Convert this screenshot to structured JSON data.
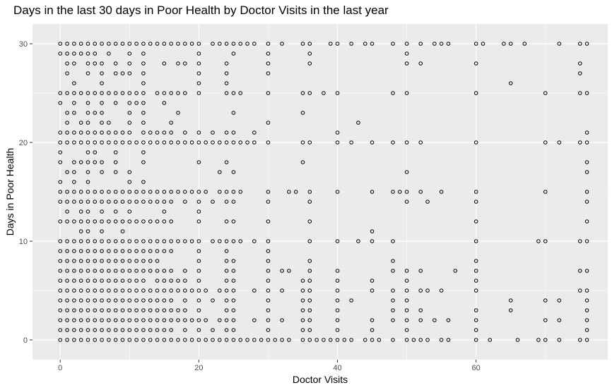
{
  "chart_data": {
    "type": "scatter",
    "title": "Days in the last 30 days in Poor Health by Doctor Visits in the last year",
    "xlabel": "Doctor Visits",
    "ylabel": "Days in Poor Health",
    "xlim": [
      -4,
      79
    ],
    "ylim": [
      -2,
      32
    ],
    "x_ticks": [
      0,
      20,
      40,
      60
    ],
    "y_ticks": [
      0,
      10,
      20,
      30
    ],
    "grid": true,
    "background": "#ebebeb",
    "gridline_color": "#ffffff",
    "marker": "open-circle",
    "x_values_dense": [
      0,
      1,
      2,
      3,
      4,
      5,
      6,
      7,
      8,
      9,
      10,
      11,
      12,
      13,
      14,
      15,
      16,
      17,
      18,
      19,
      20,
      21,
      22,
      23,
      24,
      25,
      26,
      28,
      30,
      32,
      35,
      36,
      38,
      40,
      42,
      45,
      48,
      50,
      52,
      55,
      60,
      65,
      70,
      75
    ],
    "rows": [
      {
        "y": 30,
        "x": [
          0,
          1,
          2,
          3,
          4,
          5,
          6,
          7,
          8,
          9,
          10,
          11,
          12,
          13,
          14,
          15,
          16,
          17,
          18,
          19,
          20,
          22,
          23,
          24,
          25,
          26,
          27,
          28,
          30,
          32,
          35,
          36,
          39,
          40,
          42,
          44,
          45,
          48,
          50,
          52,
          54,
          55,
          56,
          60,
          61,
          64,
          65,
          67,
          72,
          75,
          76
        ]
      },
      {
        "y": 29,
        "x": [
          0,
          1,
          2,
          3,
          4,
          5,
          7,
          10,
          12,
          20,
          25,
          30,
          36,
          50
        ]
      },
      {
        "y": 28,
        "x": [
          1,
          2,
          4,
          5,
          6,
          8,
          10,
          12,
          15,
          17,
          18,
          20,
          24,
          30,
          36,
          50,
          52,
          60,
          75
        ]
      },
      {
        "y": 27,
        "x": [
          1,
          4,
          6,
          8,
          9,
          10,
          12,
          20,
          24,
          30,
          75
        ]
      },
      {
        "y": 26,
        "x": [
          2,
          6,
          12,
          20,
          24,
          65
        ]
      },
      {
        "y": 25,
        "x": [
          0,
          1,
          2,
          3,
          4,
          5,
          6,
          7,
          8,
          9,
          10,
          11,
          12,
          14,
          15,
          16,
          17,
          18,
          20,
          24,
          25,
          26,
          30,
          35,
          36,
          38,
          40,
          48,
          50,
          60,
          70,
          75,
          76
        ]
      },
      {
        "y": 24,
        "x": [
          0,
          2,
          4,
          6,
          8,
          10,
          11,
          12,
          15
        ]
      },
      {
        "y": 23,
        "x": [
          1,
          2,
          4,
          5,
          6,
          10,
          12,
          17,
          25,
          35
        ]
      },
      {
        "y": 22,
        "x": [
          1,
          3,
          4,
          6,
          7,
          10,
          12,
          16,
          30,
          43
        ]
      },
      {
        "y": 21,
        "x": [
          0,
          1,
          2,
          3,
          4,
          5,
          6,
          7,
          8,
          9,
          10,
          12,
          13,
          14,
          15,
          16,
          18,
          20,
          22,
          24,
          25,
          28,
          40,
          76
        ]
      },
      {
        "y": 20,
        "x": [
          0,
          1,
          2,
          3,
          4,
          5,
          6,
          7,
          8,
          9,
          10,
          11,
          12,
          13,
          14,
          15,
          16,
          17,
          18,
          19,
          20,
          21,
          22,
          23,
          24,
          25,
          26,
          27,
          28,
          30,
          35,
          36,
          40,
          42,
          45,
          48,
          50,
          52,
          60,
          70,
          72,
          75,
          76
        ]
      },
      {
        "y": 19,
        "x": [
          0,
          4,
          5,
          8,
          12
        ]
      },
      {
        "y": 18,
        "x": [
          0,
          2,
          3,
          4,
          5,
          6,
          8,
          12,
          20,
          24,
          35,
          76
        ]
      },
      {
        "y": 17,
        "x": [
          1,
          2,
          4,
          6,
          8,
          10,
          23,
          25,
          50,
          76
        ]
      },
      {
        "y": 16,
        "x": [
          0,
          2,
          4,
          10,
          12
        ]
      },
      {
        "y": 15,
        "x": [
          0,
          1,
          2,
          3,
          4,
          5,
          6,
          7,
          8,
          9,
          10,
          11,
          12,
          13,
          14,
          15,
          16,
          17,
          18,
          19,
          20,
          21,
          23,
          24,
          25,
          26,
          30,
          33,
          34,
          36,
          40,
          45,
          48,
          49,
          50,
          52,
          55,
          60,
          70,
          76
        ]
      },
      {
        "y": 14,
        "x": [
          0,
          1,
          2,
          3,
          4,
          5,
          6,
          7,
          8,
          9,
          10,
          11,
          12,
          13,
          14,
          15,
          16,
          18,
          20,
          22,
          24,
          25,
          30,
          36,
          50,
          53,
          60,
          76
        ]
      },
      {
        "y": 13,
        "x": [
          1,
          3,
          4,
          6,
          8,
          10,
          15,
          20
        ]
      },
      {
        "y": 12,
        "x": [
          0,
          1,
          2,
          3,
          4,
          5,
          6,
          7,
          8,
          9,
          10,
          11,
          12,
          13,
          14,
          15,
          16,
          20,
          24,
          25,
          30,
          36,
          60,
          76
        ]
      },
      {
        "y": 11,
        "x": [
          3,
          4,
          6,
          9,
          45
        ]
      },
      {
        "y": 10,
        "x": [
          0,
          1,
          2,
          3,
          4,
          5,
          6,
          7,
          8,
          9,
          10,
          11,
          12,
          13,
          14,
          15,
          16,
          17,
          18,
          19,
          20,
          22,
          23,
          24,
          25,
          26,
          28,
          30,
          36,
          40,
          43,
          45,
          48,
          60,
          69,
          70,
          75,
          76
        ]
      },
      {
        "y": 9,
        "x": [
          0,
          1,
          2,
          3,
          4,
          5,
          6,
          7,
          8,
          9,
          10,
          11,
          12,
          13,
          14,
          15,
          16,
          20,
          24,
          30
        ]
      },
      {
        "y": 8,
        "x": [
          0,
          1,
          2,
          3,
          4,
          5,
          6,
          7,
          8,
          9,
          10,
          11,
          12,
          13,
          14,
          20,
          24,
          25,
          30,
          36,
          48,
          60
        ]
      },
      {
        "y": 7,
        "x": [
          0,
          1,
          2,
          3,
          4,
          5,
          6,
          7,
          8,
          9,
          10,
          11,
          12,
          13,
          14,
          15,
          16,
          18,
          20,
          24,
          25,
          30,
          32,
          33,
          36,
          40,
          48,
          50,
          52,
          57,
          60,
          75,
          76
        ]
      },
      {
        "y": 6,
        "x": [
          0,
          1,
          2,
          3,
          4,
          5,
          6,
          7,
          8,
          9,
          10,
          11,
          12,
          14,
          15,
          16,
          17,
          18,
          20,
          24,
          25,
          30,
          35,
          36,
          40,
          45,
          50,
          60
        ]
      },
      {
        "y": 5,
        "x": [
          0,
          1,
          2,
          3,
          4,
          5,
          6,
          7,
          8,
          9,
          10,
          11,
          12,
          13,
          14,
          15,
          16,
          17,
          18,
          19,
          20,
          21,
          23,
          24,
          25,
          28,
          30,
          32,
          35,
          36,
          40,
          45,
          48,
          50,
          52,
          53,
          55,
          60,
          75,
          76
        ]
      },
      {
        "y": 4,
        "x": [
          0,
          1,
          2,
          3,
          4,
          5,
          6,
          7,
          8,
          9,
          10,
          11,
          12,
          13,
          14,
          15,
          16,
          18,
          20,
          22,
          24,
          25,
          30,
          35,
          36,
          40,
          42,
          48,
          50,
          65,
          70,
          72,
          76
        ]
      },
      {
        "y": 3,
        "x": [
          0,
          1,
          2,
          3,
          4,
          5,
          6,
          7,
          8,
          9,
          10,
          11,
          12,
          13,
          14,
          15,
          16,
          17,
          18,
          20,
          24,
          25,
          30,
          35,
          36,
          40,
          48,
          50,
          52,
          60,
          65,
          76
        ]
      },
      {
        "y": 2,
        "x": [
          0,
          1,
          2,
          3,
          4,
          5,
          6,
          7,
          8,
          9,
          10,
          11,
          12,
          13,
          14,
          15,
          16,
          17,
          18,
          19,
          20,
          21,
          23,
          24,
          25,
          28,
          30,
          32,
          35,
          36,
          40,
          45,
          48,
          50,
          52,
          54,
          56,
          60,
          70,
          72,
          76
        ]
      },
      {
        "y": 1,
        "x": [
          0,
          1,
          2,
          3,
          4,
          5,
          6,
          7,
          8,
          9,
          10,
          11,
          12,
          13,
          14,
          15,
          16,
          18,
          20,
          22,
          24,
          25,
          30,
          35,
          36,
          40,
          45,
          50,
          60,
          76
        ]
      },
      {
        "y": 0,
        "x": [
          0,
          1,
          2,
          3,
          4,
          5,
          6,
          7,
          8,
          9,
          10,
          11,
          12,
          13,
          14,
          15,
          16,
          17,
          18,
          19,
          20,
          21,
          22,
          23,
          24,
          25,
          26,
          27,
          28,
          29,
          30,
          31,
          32,
          33,
          35,
          36,
          37,
          38,
          39,
          40,
          41,
          42,
          44,
          45,
          46,
          48,
          50,
          51,
          52,
          53,
          55,
          56,
          60,
          62,
          66,
          69,
          70,
          72,
          75,
          76
        ]
      }
    ]
  }
}
